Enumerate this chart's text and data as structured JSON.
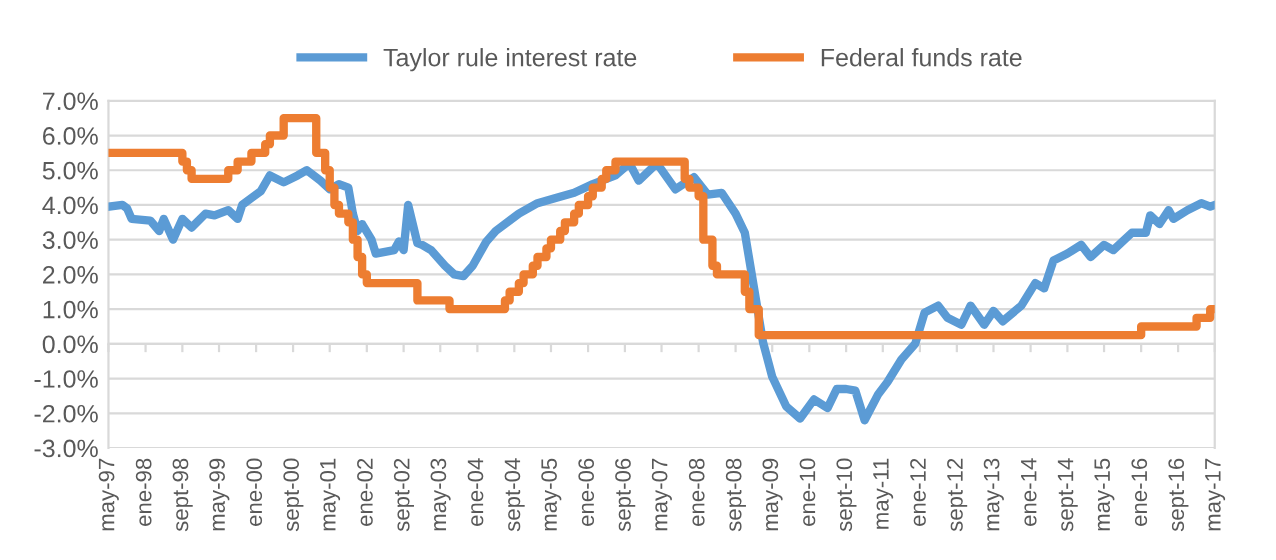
{
  "chart_data": {
    "type": "line",
    "legend": "top",
    "grid": "y",
    "line_style": "solid",
    "marker": "none",
    "ylim": [
      -3,
      7
    ],
    "yticks": [
      {
        "value": -3,
        "label": "-3.0%"
      },
      {
        "value": -2,
        "label": "-2.0%"
      },
      {
        "value": -1,
        "label": "-1.0%"
      },
      {
        "value": 0,
        "label": "0.0%"
      },
      {
        "value": 1,
        "label": "1.0%"
      },
      {
        "value": 2,
        "label": "2.0%"
      },
      {
        "value": 3,
        "label": "3.0%"
      },
      {
        "value": 4,
        "label": "4.0%"
      },
      {
        "value": 5,
        "label": "5.0%"
      },
      {
        "value": 6,
        "label": "6.0%"
      },
      {
        "value": 7,
        "label": "7.0%"
      }
    ],
    "xlim": [
      "1997-05",
      "2017-05"
    ],
    "xticks": [
      {
        "value": "1997-05",
        "label": "may-97"
      },
      {
        "value": "1998-01",
        "label": "ene-98"
      },
      {
        "value": "1998-09",
        "label": "sept-98"
      },
      {
        "value": "1999-05",
        "label": "may-99"
      },
      {
        "value": "2000-01",
        "label": "ene-00"
      },
      {
        "value": "2000-09",
        "label": "sept-00"
      },
      {
        "value": "2001-05",
        "label": "may-01"
      },
      {
        "value": "2002-01",
        "label": "ene-02"
      },
      {
        "value": "2002-09",
        "label": "sept-02"
      },
      {
        "value": "2003-05",
        "label": "may-03"
      },
      {
        "value": "2004-01",
        "label": "ene-04"
      },
      {
        "value": "2004-09",
        "label": "sept-04"
      },
      {
        "value": "2005-05",
        "label": "may-05"
      },
      {
        "value": "2006-01",
        "label": "ene-06"
      },
      {
        "value": "2006-09",
        "label": "sept-06"
      },
      {
        "value": "2007-05",
        "label": "may-07"
      },
      {
        "value": "2008-01",
        "label": "ene-08"
      },
      {
        "value": "2008-09",
        "label": "sept-08"
      },
      {
        "value": "2009-05",
        "label": "may-09"
      },
      {
        "value": "2010-01",
        "label": "ene-10"
      },
      {
        "value": "2010-09",
        "label": "sept-10"
      },
      {
        "value": "2011-05",
        "label": "may-11"
      },
      {
        "value": "2012-01",
        "label": "ene-12"
      },
      {
        "value": "2012-09",
        "label": "sept-12"
      },
      {
        "value": "2013-05",
        "label": "may-13"
      },
      {
        "value": "2014-01",
        "label": "ene-14"
      },
      {
        "value": "2014-09",
        "label": "sept-14"
      },
      {
        "value": "2015-05",
        "label": "may-15"
      },
      {
        "value": "2016-01",
        "label": "ene-16"
      },
      {
        "value": "2016-09",
        "label": "sept-16"
      },
      {
        "value": "2017-05",
        "label": "may-17"
      }
    ],
    "series": [
      {
        "name": "Taylor rule interest rate",
        "type": "line",
        "color": "#5b9bd5",
        "x": [
          "1997-05",
          "1997-08",
          "1997-09",
          "1997-10",
          "1998-02",
          "1998-04",
          "1998-05",
          "1998-07",
          "1998-09",
          "1998-11",
          "1999-02",
          "1999-04",
          "1999-07",
          "1999-09",
          "1999-10",
          "2000-02",
          "2000-04",
          "2000-07",
          "2000-10",
          "2000-12",
          "2001-03",
          "2001-05",
          "2001-07",
          "2001-09",
          "2001-10",
          "2001-11",
          "2001-12",
          "2002-02",
          "2002-03",
          "2002-07",
          "2002-08",
          "2002-09",
          "2002-10",
          "2002-12",
          "2003-01",
          "2003-03",
          "2003-06",
          "2003-08",
          "2003-10",
          "2003-12",
          "2004-03",
          "2004-05",
          "2004-10",
          "2005-02",
          "2005-06",
          "2005-10",
          "2006-02",
          "2006-07",
          "2006-10",
          "2006-12",
          "2007-04",
          "2007-08",
          "2007-12",
          "2008-03",
          "2008-06",
          "2008-09",
          "2008-11",
          "2009-01",
          "2009-03",
          "2009-05",
          "2009-08",
          "2009-11",
          "2010-02",
          "2010-05",
          "2010-07",
          "2010-09",
          "2010-11",
          "2011-01",
          "2011-04",
          "2011-06",
          "2011-09",
          "2011-12",
          "2012-02",
          "2012-05",
          "2012-07",
          "2012-10",
          "2012-12",
          "2013-03",
          "2013-05",
          "2013-07",
          "2013-11",
          "2014-02",
          "2014-04",
          "2014-06",
          "2014-09",
          "2014-12",
          "2015-02",
          "2015-05",
          "2015-07",
          "2015-11",
          "2016-02",
          "2016-03",
          "2016-05",
          "2016-07",
          "2016-08",
          "2016-11",
          "2017-02",
          "2017-04",
          "2017-05"
        ],
        "values": [
          3.95,
          4.0,
          3.9,
          3.6,
          3.55,
          3.25,
          3.6,
          3.0,
          3.6,
          3.35,
          3.75,
          3.7,
          3.85,
          3.6,
          4.0,
          4.4,
          4.85,
          4.65,
          4.85,
          5.0,
          4.7,
          4.45,
          4.6,
          4.5,
          3.75,
          3.25,
          3.45,
          3.0,
          2.6,
          2.7,
          2.95,
          2.7,
          4.0,
          2.9,
          2.85,
          2.7,
          2.25,
          2.0,
          1.95,
          2.25,
          2.95,
          3.25,
          3.75,
          4.05,
          4.2,
          4.35,
          4.6,
          4.85,
          5.2,
          4.7,
          5.2,
          4.45,
          4.8,
          4.3,
          4.35,
          3.75,
          3.2,
          1.6,
          0.05,
          -0.95,
          -1.8,
          -2.15,
          -1.6,
          -1.85,
          -1.3,
          -1.3,
          -1.35,
          -2.2,
          -1.45,
          -1.1,
          -0.45,
          0.0,
          0.9,
          1.1,
          0.75,
          0.55,
          1.1,
          0.55,
          0.95,
          0.65,
          1.1,
          1.75,
          1.6,
          2.4,
          2.6,
          2.85,
          2.5,
          2.85,
          2.7,
          3.2,
          3.2,
          3.7,
          3.45,
          3.85,
          3.6,
          3.85,
          4.05,
          3.95,
          4.0
        ]
      },
      {
        "name": "Federal funds rate",
        "type": "step",
        "color": "#ed7d31",
        "x": [
          "1997-05",
          "1998-09",
          "1998-10",
          "1998-11",
          "1999-07",
          "1999-09",
          "1999-12",
          "2000-03",
          "2000-04",
          "2000-07",
          "2001-02",
          "2001-04",
          "2001-05",
          "2001-06",
          "2001-07",
          "2001-09",
          "2001-10",
          "2001-11",
          "2001-12",
          "2002-01",
          "2002-12",
          "2003-07",
          "2004-07",
          "2004-08",
          "2004-10",
          "2004-11",
          "2005-01",
          "2005-02",
          "2005-04",
          "2005-05",
          "2005-07",
          "2005-08",
          "2005-10",
          "2005-11",
          "2006-01",
          "2006-02",
          "2006-04",
          "2006-05",
          "2006-07",
          "2007-10",
          "2007-11",
          "2008-01",
          "2008-02",
          "2008-04",
          "2008-05",
          "2008-11",
          "2008-12",
          "2009-02",
          "2016-01",
          "2017-01",
          "2017-04",
          "2017-05"
        ],
        "values": [
          5.5,
          5.25,
          5.0,
          4.75,
          5.0,
          5.25,
          5.5,
          5.75,
          6.0,
          6.5,
          5.5,
          5.0,
          4.5,
          4.0,
          3.75,
          3.5,
          3.0,
          2.5,
          2.0,
          1.75,
          1.25,
          1.0,
          1.25,
          1.5,
          1.75,
          2.0,
          2.25,
          2.5,
          2.75,
          3.0,
          3.25,
          3.5,
          3.75,
          4.0,
          4.25,
          4.5,
          4.75,
          5.0,
          5.25,
          4.75,
          4.5,
          4.25,
          3.0,
          2.25,
          2.0,
          1.5,
          1.0,
          0.25,
          0.5,
          0.75,
          1.0,
          1.0
        ]
      }
    ]
  }
}
